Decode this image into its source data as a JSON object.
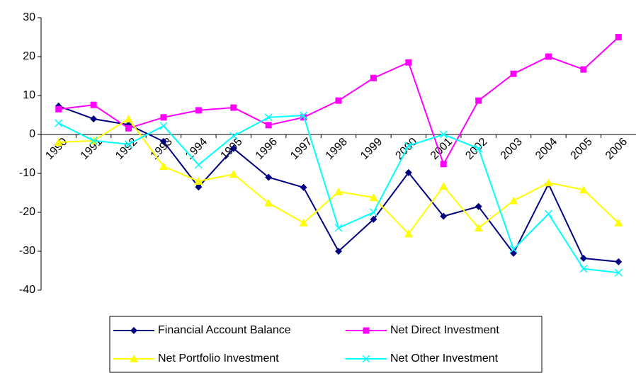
{
  "chart_data": {
    "type": "line",
    "categories": [
      "1990",
      "1991",
      "1992",
      "1993",
      "1994",
      "1995",
      "1996",
      "1997",
      "1998",
      "1999",
      "2000",
      "2001",
      "2002",
      "2003",
      "2004",
      "2005",
      "2006"
    ],
    "series": [
      {
        "name": "Financial Account Balance",
        "color": "#000080",
        "marker": "diamond",
        "values": [
          7.3,
          4,
          2.5,
          -1.8,
          -13.5,
          -3.6,
          -11,
          -13.6,
          -30,
          -21.8,
          -9.8,
          -21,
          -18.5,
          -30.5,
          -12.7,
          -31.8,
          -32.7
        ]
      },
      {
        "name": "Net Direct Investment",
        "color": "#ff00ff",
        "marker": "square",
        "values": [
          6.5,
          7.6,
          1.6,
          4.4,
          6.2,
          6.9,
          2.4,
          4.4,
          8.7,
          14.5,
          18.5,
          -7.6,
          8.7,
          15.6,
          20,
          16.7,
          25
        ]
      },
      {
        "name": "Net Portfolio Investment",
        "color": "#ffff00",
        "marker": "triangle",
        "values": [
          -2,
          -1.6,
          4,
          -8.2,
          -12,
          -10.2,
          -17.6,
          -22.7,
          -14.7,
          -16.2,
          -25.5,
          -13.3,
          -24,
          -17,
          -12.4,
          -14.2,
          -22.7
        ]
      },
      {
        "name": "Net Other Investment",
        "color": "#00ffff",
        "marker": "x",
        "values": [
          2.9,
          -1.6,
          -2.5,
          2.2,
          -7.8,
          -0.4,
          4.4,
          4.9,
          -24,
          -20,
          -2.9,
          0,
          -3.6,
          -29.5,
          -20.4,
          -34.5,
          -35.5
        ]
      }
    ],
    "ylim": [
      -40,
      30
    ],
    "yticks": [
      -40,
      -30,
      -20,
      -10,
      0,
      10,
      20,
      30
    ],
    "grid": false
  }
}
